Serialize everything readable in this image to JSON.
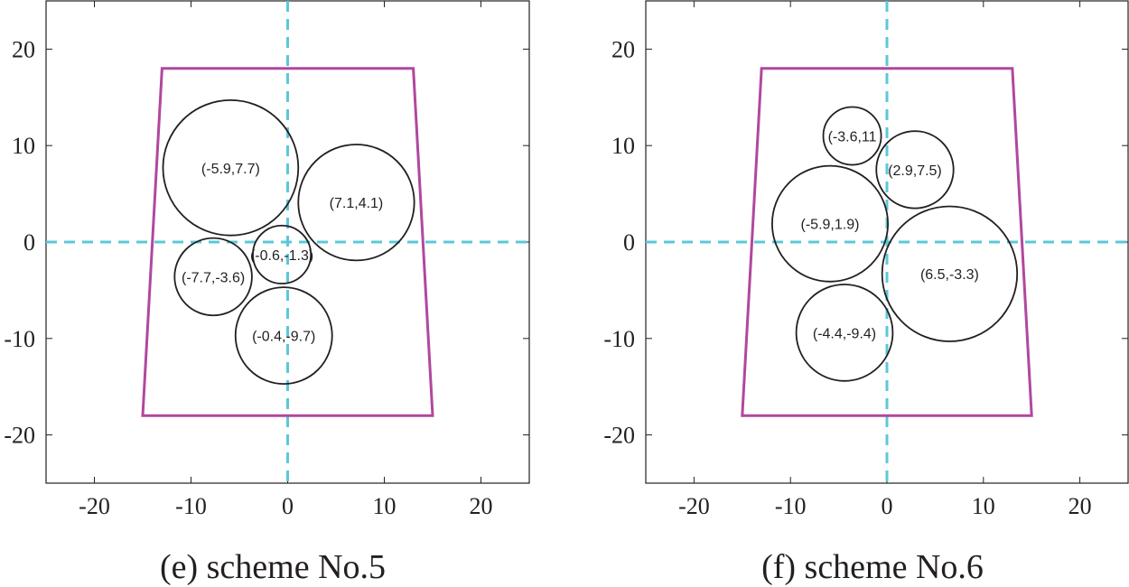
{
  "chart_data": [
    {
      "type": "scatter",
      "caption": "(e) scheme No.5",
      "xlim": [
        -25,
        25
      ],
      "ylim": [
        -25,
        25
      ],
      "xticks": [
        "-20",
        "-10",
        "0",
        "10",
        "20"
      ],
      "yticks": [
        "20",
        "10",
        "0",
        "-10",
        "-20"
      ],
      "grid": false,
      "boundary_polygon": [
        [
          -13,
          18
        ],
        [
          13,
          18
        ],
        [
          15,
          -18
        ],
        [
          -15,
          -18
        ]
      ],
      "boundary_color": "#b0489e",
      "axis_line_color": "#5bc8d8",
      "circles": [
        {
          "x": -5.9,
          "y": 7.7,
          "r": 7,
          "label": "(-5.9,7.7)"
        },
        {
          "x": 7.1,
          "y": 4.1,
          "r": 6,
          "label": "(7.1,4.1)"
        },
        {
          "x": -0.6,
          "y": -1.3,
          "r": 3,
          "label": "(-0.6,-1.3)"
        },
        {
          "x": -7.7,
          "y": -3.6,
          "r": 4,
          "label": "(-7.7,-3.6)"
        },
        {
          "x": -0.4,
          "y": -9.7,
          "r": 5,
          "label": "(-0.4,-9.7)"
        }
      ]
    },
    {
      "type": "scatter",
      "caption": "(f) scheme No.6",
      "xlim": [
        -25,
        25
      ],
      "ylim": [
        -25,
        25
      ],
      "xticks": [
        "-20",
        "-10",
        "0",
        "10",
        "20"
      ],
      "yticks": [
        "20",
        "10",
        "0",
        "-10",
        "-20"
      ],
      "grid": false,
      "boundary_polygon": [
        [
          -13,
          18
        ],
        [
          13,
          18
        ],
        [
          15,
          -18
        ],
        [
          -15,
          -18
        ]
      ],
      "boundary_color": "#b0489e",
      "axis_line_color": "#5bc8d8",
      "circles": [
        {
          "x": -3.6,
          "y": 11,
          "r": 3,
          "label": "(-3.6,11"
        },
        {
          "x": 2.9,
          "y": 7.5,
          "r": 4,
          "label": "(2.9,7.5)"
        },
        {
          "x": -5.9,
          "y": 1.9,
          "r": 6,
          "label": "(-5.9,1.9)"
        },
        {
          "x": 6.5,
          "y": -3.3,
          "r": 7,
          "label": "(6.5,-3.3)"
        },
        {
          "x": -4.4,
          "y": -9.4,
          "r": 5,
          "label": "(-4.4,-9.4)"
        }
      ]
    }
  ]
}
